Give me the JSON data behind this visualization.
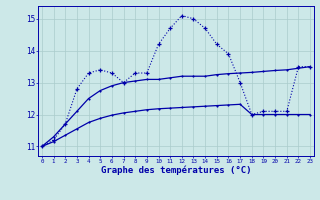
{
  "xlabel": "Graphe des températures (°C)",
  "background_color": "#cce8e8",
  "line_color": "#0000aa",
  "x_hours": [
    0,
    1,
    2,
    3,
    4,
    5,
    6,
    7,
    8,
    9,
    10,
    11,
    12,
    13,
    14,
    15,
    16,
    17,
    18,
    19,
    20,
    21,
    22,
    23
  ],
  "temp_main": [
    11.0,
    11.2,
    11.7,
    12.8,
    13.3,
    13.4,
    13.3,
    13.0,
    13.3,
    13.3,
    14.2,
    14.7,
    15.1,
    15.0,
    14.7,
    14.2,
    13.9,
    13.0,
    12.0,
    12.1,
    12.1,
    12.1,
    13.5,
    13.5
  ],
  "line_upper": [
    11.0,
    11.3,
    11.7,
    12.1,
    12.5,
    12.75,
    12.9,
    13.0,
    13.05,
    13.1,
    13.1,
    13.15,
    13.2,
    13.2,
    13.2,
    13.25,
    13.28,
    13.3,
    13.32,
    13.35,
    13.38,
    13.4,
    13.45,
    13.5
  ],
  "line_lower": [
    11.0,
    11.15,
    11.35,
    11.55,
    11.75,
    11.88,
    11.98,
    12.05,
    12.1,
    12.15,
    12.18,
    12.2,
    12.22,
    12.24,
    12.26,
    12.28,
    12.3,
    12.32,
    12.0,
    12.0,
    12.0,
    12.0,
    12.0,
    12.0
  ],
  "ylim": [
    10.7,
    15.4
  ],
  "yticks": [
    11,
    12,
    13,
    14,
    15
  ],
  "xlim": [
    -0.3,
    23.3
  ],
  "grid_color": "#aacccc"
}
